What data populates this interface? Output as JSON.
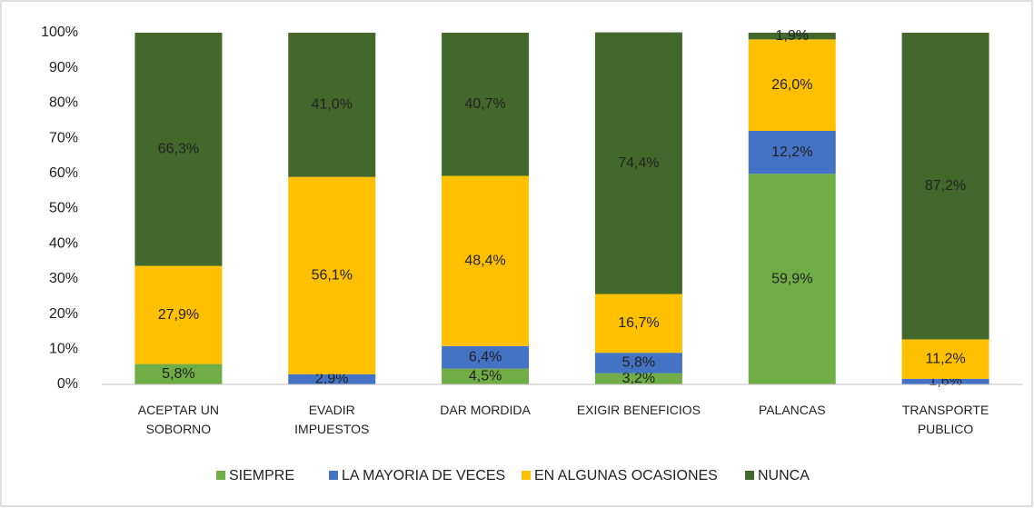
{
  "chart_data": {
    "type": "stacked_bar",
    "categories": [
      "ACEPTAR UN\nSOBORNO",
      "EVADIR\nIMPUESTOS",
      "DAR MORDIDA",
      "EXIGIR BENEFICIOS",
      "PALANCAS",
      "TRANSPORTE\nPUBLICO"
    ],
    "series": [
      {
        "name": "SIEMPRE",
        "color": "#70ad47",
        "values": [
          5.8,
          null,
          4.5,
          3.2,
          59.9,
          null
        ],
        "value_labels": [
          "5,8%",
          null,
          "4,5%",
          "3,2%",
          "59,9%",
          null
        ]
      },
      {
        "name": "LA MAYORIA DE VECES",
        "color": "#4472c4",
        "values": [
          null,
          2.9,
          6.4,
          5.8,
          12.2,
          1.6
        ],
        "value_labels": [
          null,
          "2,9%",
          "6,4%",
          "5,8%",
          "12,2%",
          "1,6%"
        ]
      },
      {
        "name": "EN ALGUNAS OCASIONES",
        "color": "#ffc000",
        "values": [
          27.9,
          56.1,
          48.4,
          16.7,
          26.0,
          11.2
        ],
        "value_labels": [
          "27,9%",
          "56,1%",
          "48,4%",
          "16,7%",
          "26,0%",
          "11,2%"
        ]
      },
      {
        "name": "NUNCA",
        "color": "#43682b",
        "values": [
          66.3,
          41.0,
          40.7,
          74.4,
          1.9,
          87.2
        ],
        "value_labels": [
          "66,3%",
          "41,0%",
          "40,7%",
          "74,4%",
          "1,9%",
          "87,2%"
        ]
      }
    ],
    "ylim": [
      0,
      100
    ],
    "yticks": [
      {
        "value": 0,
        "label": "0%"
      },
      {
        "value": 10,
        "label": "10%"
      },
      {
        "value": 20,
        "label": "20%"
      },
      {
        "value": 30,
        "label": "30%"
      },
      {
        "value": 40,
        "label": "40%"
      },
      {
        "value": 50,
        "label": "50%"
      },
      {
        "value": 60,
        "label": "60%"
      },
      {
        "value": 70,
        "label": "70%"
      },
      {
        "value": 80,
        "label": "80%"
      },
      {
        "value": 90,
        "label": "90%"
      },
      {
        "value": 100,
        "label": "100%"
      }
    ],
    "legend": "bottom"
  }
}
